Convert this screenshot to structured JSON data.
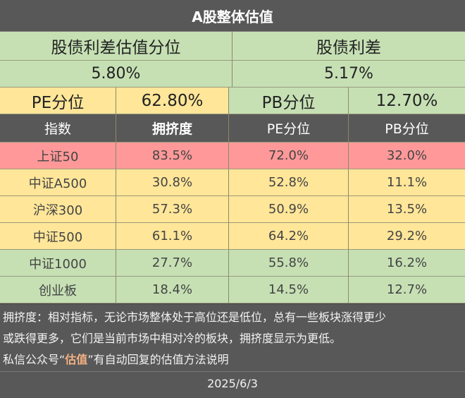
{
  "title": "A股整体估值",
  "overall": {
    "erp_percentile_label": "股债利差估值分位",
    "erp_label": "股债利差",
    "erp_percentile_value": "5.80%",
    "erp_value": "5.17%",
    "pe_label": "PE分位",
    "pe_value": "62.80%",
    "pb_label": "PB分位",
    "pb_value": "12.70%"
  },
  "table": {
    "headers": [
      "指数",
      "拥挤度",
      "PE分位",
      "PB分位"
    ],
    "rows": [
      {
        "name": "上证50",
        "crowding": "83.5%",
        "pe": "72.0%",
        "pb": "32.0%",
        "color": "#ff9999"
      },
      {
        "name": "中证A500",
        "crowding": "30.8%",
        "pe": "52.8%",
        "pb": "11.1%",
        "color": "#ffe699"
      },
      {
        "name": "沪深300",
        "crowding": "57.3%",
        "pe": "50.9%",
        "pb": "13.5%",
        "color": "#ffe699"
      },
      {
        "name": "中证500",
        "crowding": "61.1%",
        "pe": "64.2%",
        "pb": "29.2%",
        "color": "#ffe699"
      },
      {
        "name": "中证1000",
        "crowding": "27.7%",
        "pe": "55.8%",
        "pb": "16.2%",
        "color": "#c6e0b4"
      },
      {
        "name": "创业板",
        "crowding": "18.4%",
        "pe": "14.5%",
        "pb": "12.7%",
        "color": "#c6e0b4"
      }
    ]
  },
  "note": {
    "line1": "拥挤度：相对指标，无论市场整体处于高位还是低位，总有一些板块涨得更少",
    "line2": "或跌得更多，它们是当前市场中相对冷的板块，拥挤度显示为更低。",
    "line3_prefix": "私信公众号“",
    "line3_highlight": "估值",
    "line3_suffix": "”有自动回复的估值方法说明"
  },
  "date": "2025/6/3"
}
